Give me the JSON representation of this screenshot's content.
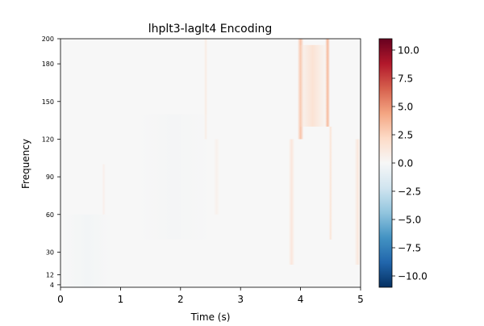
{
  "chart_data": {
    "type": "heatmap",
    "title": "lhplt3-laglt4 Encoding",
    "xlabel": "Time (s)",
    "ylabel": "Frequency",
    "xlim": [
      0,
      5
    ],
    "ylim": [
      2,
      200
    ],
    "x_ticks": [
      0,
      1,
      2,
      3,
      4,
      5
    ],
    "x_tick_labels": [
      "0",
      "1",
      "2",
      "3",
      "4",
      "5"
    ],
    "y_ticks": [
      4,
      12,
      30,
      60,
      90,
      120,
      150,
      180,
      200
    ],
    "y_tick_labels": [
      "4",
      "12",
      "30",
      "60",
      "90",
      "120",
      "150",
      "180",
      "200"
    ],
    "colormap": "RdBu_r",
    "colorbar": {
      "vmin": -11,
      "vmax": 11,
      "ticks": [
        10.0,
        7.5,
        5.0,
        2.5,
        0.0,
        -2.5,
        -5.0,
        -7.5,
        -10.0
      ],
      "tick_labels": [
        "10.0",
        "7.5",
        "5.0",
        "2.5",
        "0.0",
        "−2.5",
        "−5.0",
        "−7.5",
        "−10.0"
      ]
    },
    "features": [
      {
        "t_center": 4.0,
        "t_width": 0.05,
        "f_low": 120,
        "f_high": 200,
        "value": 3.2
      },
      {
        "t_center": 4.45,
        "t_width": 0.04,
        "f_low": 130,
        "f_high": 200,
        "value": 3.6
      },
      {
        "t_center": 4.2,
        "t_width": 0.25,
        "f_low": 130,
        "f_high": 195,
        "value": 1.6
      },
      {
        "t_center": 3.85,
        "t_width": 0.05,
        "f_low": 20,
        "f_high": 120,
        "value": 1.3
      },
      {
        "t_center": 4.5,
        "t_width": 0.03,
        "f_low": 40,
        "f_high": 130,
        "value": 1.4
      },
      {
        "t_center": 4.95,
        "t_width": 0.05,
        "f_low": 20,
        "f_high": 120,
        "value": 1.2
      },
      {
        "t_center": 2.42,
        "t_width": 0.03,
        "f_low": 120,
        "f_high": 200,
        "value": 0.9
      },
      {
        "t_center": 0.72,
        "t_width": 0.03,
        "f_low": 60,
        "f_high": 100,
        "value": 0.6
      },
      {
        "t_center": 2.6,
        "t_width": 0.05,
        "f_low": 60,
        "f_high": 120,
        "value": 0.5
      },
      {
        "t_center": 0.45,
        "t_width": 0.4,
        "f_low": 2,
        "f_high": 60,
        "value": -0.3
      },
      {
        "t_center": 1.9,
        "t_width": 0.6,
        "f_low": 40,
        "f_high": 140,
        "value": -0.2
      }
    ]
  }
}
